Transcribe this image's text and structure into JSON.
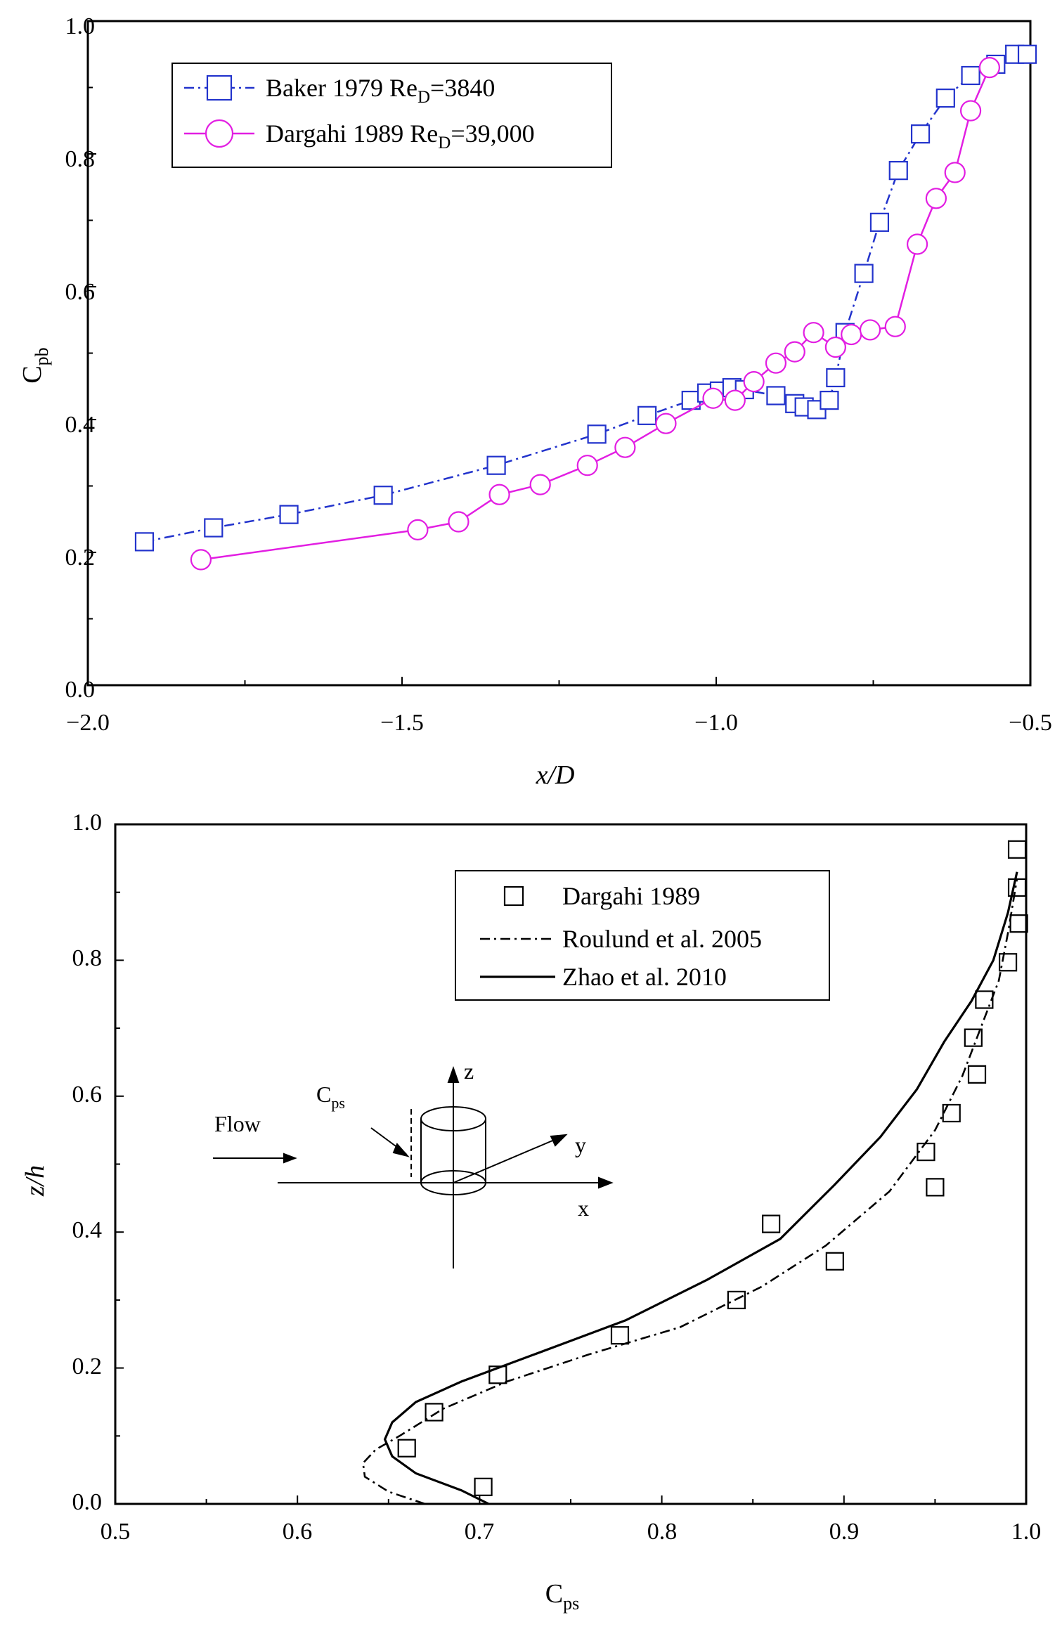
{
  "chart_data": [
    {
      "type": "line",
      "title": "",
      "xlabel": "x/D",
      "ylabel": {
        "main": "C",
        "sub": "pb"
      },
      "xlim": [
        -2.0,
        -0.5
      ],
      "ylim": [
        0.0,
        1.0
      ],
      "xticks": [
        "−2.0",
        "−1.5",
        "−1.0",
        "−0.5"
      ],
      "yticks": [
        "0.0",
        "0.2",
        "0.4",
        "0.6",
        "0.8",
        "1.0"
      ],
      "legend_position": "top-left",
      "series": [
        {
          "name": "Baker 1979 Re_D=3840",
          "legend": {
            "main": "Baker 1979 Re",
            "sub": "D",
            "tail": "=3840"
          },
          "color": "#2233cc",
          "marker": "square",
          "line": "dash-dot",
          "x": [
            -1.91,
            -1.8,
            -1.68,
            -1.53,
            -1.35,
            -1.19,
            -1.11,
            -1.04,
            -1.015,
            -0.995,
            -0.975,
            -0.955,
            -0.905,
            -0.875,
            -0.86,
            -0.84,
            -0.82,
            -0.81,
            -0.795,
            -0.765,
            -0.74,
            -0.71,
            -0.675,
            -0.635,
            -0.595,
            -0.555,
            -0.525,
            -0.505
          ],
          "y": [
            0.216,
            0.237,
            0.257,
            0.286,
            0.331,
            0.378,
            0.406,
            0.429,
            0.44,
            0.443,
            0.448,
            0.445,
            0.436,
            0.424,
            0.419,
            0.415,
            0.429,
            0.463,
            0.531,
            0.62,
            0.697,
            0.775,
            0.83,
            0.884,
            0.918,
            0.935,
            0.95,
            0.95
          ]
        },
        {
          "name": "Dargahi 1989 Re_D=39,000",
          "legend": {
            "main": "Dargahi 1989 Re",
            "sub": "D",
            "tail": "=39,000"
          },
          "color": "#e21ee2",
          "marker": "circle",
          "line": "solid",
          "x": [
            -1.82,
            -1.475,
            -1.41,
            -1.345,
            -1.28,
            -1.205,
            -1.145,
            -1.08,
            -1.005,
            -0.97,
            -0.94,
            -0.905,
            -0.875,
            -0.845,
            -0.81,
            -0.785,
            -0.755,
            -0.715,
            -0.68,
            -0.65,
            -0.62,
            -0.595,
            -0.565
          ],
          "y": [
            0.189,
            0.234,
            0.246,
            0.287,
            0.302,
            0.331,
            0.358,
            0.394,
            0.432,
            0.429,
            0.457,
            0.485,
            0.502,
            0.531,
            0.509,
            0.528,
            0.535,
            0.54,
            0.664,
            0.733,
            0.772,
            0.865,
            0.93
          ]
        }
      ]
    },
    {
      "type": "line",
      "title": "",
      "xlabel": {
        "main": "C",
        "sub": "ps"
      },
      "ylabel": "z/h",
      "xlim": [
        0.5,
        1.0
      ],
      "ylim": [
        0.0,
        1.0
      ],
      "xticks": [
        "0.5",
        "0.6",
        "0.7",
        "0.8",
        "0.9",
        "1.0"
      ],
      "yticks": [
        "0.0",
        "0.2",
        "0.4",
        "0.6",
        "0.8",
        "1.0"
      ],
      "legend_position": "top-right",
      "series": [
        {
          "name": "Dargahi 1989",
          "color": "#000000",
          "marker": "square",
          "line": "none",
          "x": [
            0.702,
            0.66,
            0.675,
            0.71,
            0.777,
            0.841,
            0.86,
            0.895,
            0.945,
            0.95,
            0.959,
            0.973,
            0.971,
            0.977,
            0.99,
            0.996,
            0.995,
            0.995
          ],
          "y": [
            0.025,
            0.082,
            0.135,
            0.19,
            0.248,
            0.3,
            0.412,
            0.357,
            0.518,
            0.466,
            0.575,
            0.632,
            0.686,
            0.742,
            0.797,
            0.854,
            0.907,
            0.963
          ]
        },
        {
          "name": "Roulund et al. 2005",
          "color": "#000000",
          "marker": "none",
          "line": "dash-dot",
          "x": [
            0.67,
            0.65,
            0.637,
            0.636,
            0.643,
            0.656,
            0.68,
            0.715,
            0.76,
            0.81,
            0.855,
            0.89,
            0.925,
            0.95,
            0.965,
            0.975,
            0.985,
            0.99,
            0.995
          ],
          "y": [
            0.0,
            0.018,
            0.04,
            0.06,
            0.08,
            0.1,
            0.14,
            0.18,
            0.22,
            0.26,
            0.32,
            0.38,
            0.46,
            0.55,
            0.63,
            0.7,
            0.77,
            0.84,
            0.92
          ]
        },
        {
          "name": "Zhao et al. 2010",
          "color": "#000000",
          "marker": "none",
          "line": "solid",
          "x": [
            0.705,
            0.69,
            0.665,
            0.652,
            0.648,
            0.652,
            0.665,
            0.69,
            0.73,
            0.78,
            0.825,
            0.865,
            0.895,
            0.92,
            0.94,
            0.955,
            0.97,
            0.982,
            0.99,
            0.995
          ],
          "y": [
            0.0,
            0.02,
            0.045,
            0.07,
            0.095,
            0.12,
            0.15,
            0.18,
            0.22,
            0.27,
            0.33,
            0.39,
            0.47,
            0.54,
            0.61,
            0.68,
            0.74,
            0.8,
            0.87,
            0.93
          ]
        }
      ],
      "inset": {
        "flow_label": "Flow",
        "cps_label": {
          "main": "C",
          "sub": "ps"
        },
        "axes": {
          "x": "x",
          "y": "y",
          "z": "z"
        }
      }
    }
  ]
}
